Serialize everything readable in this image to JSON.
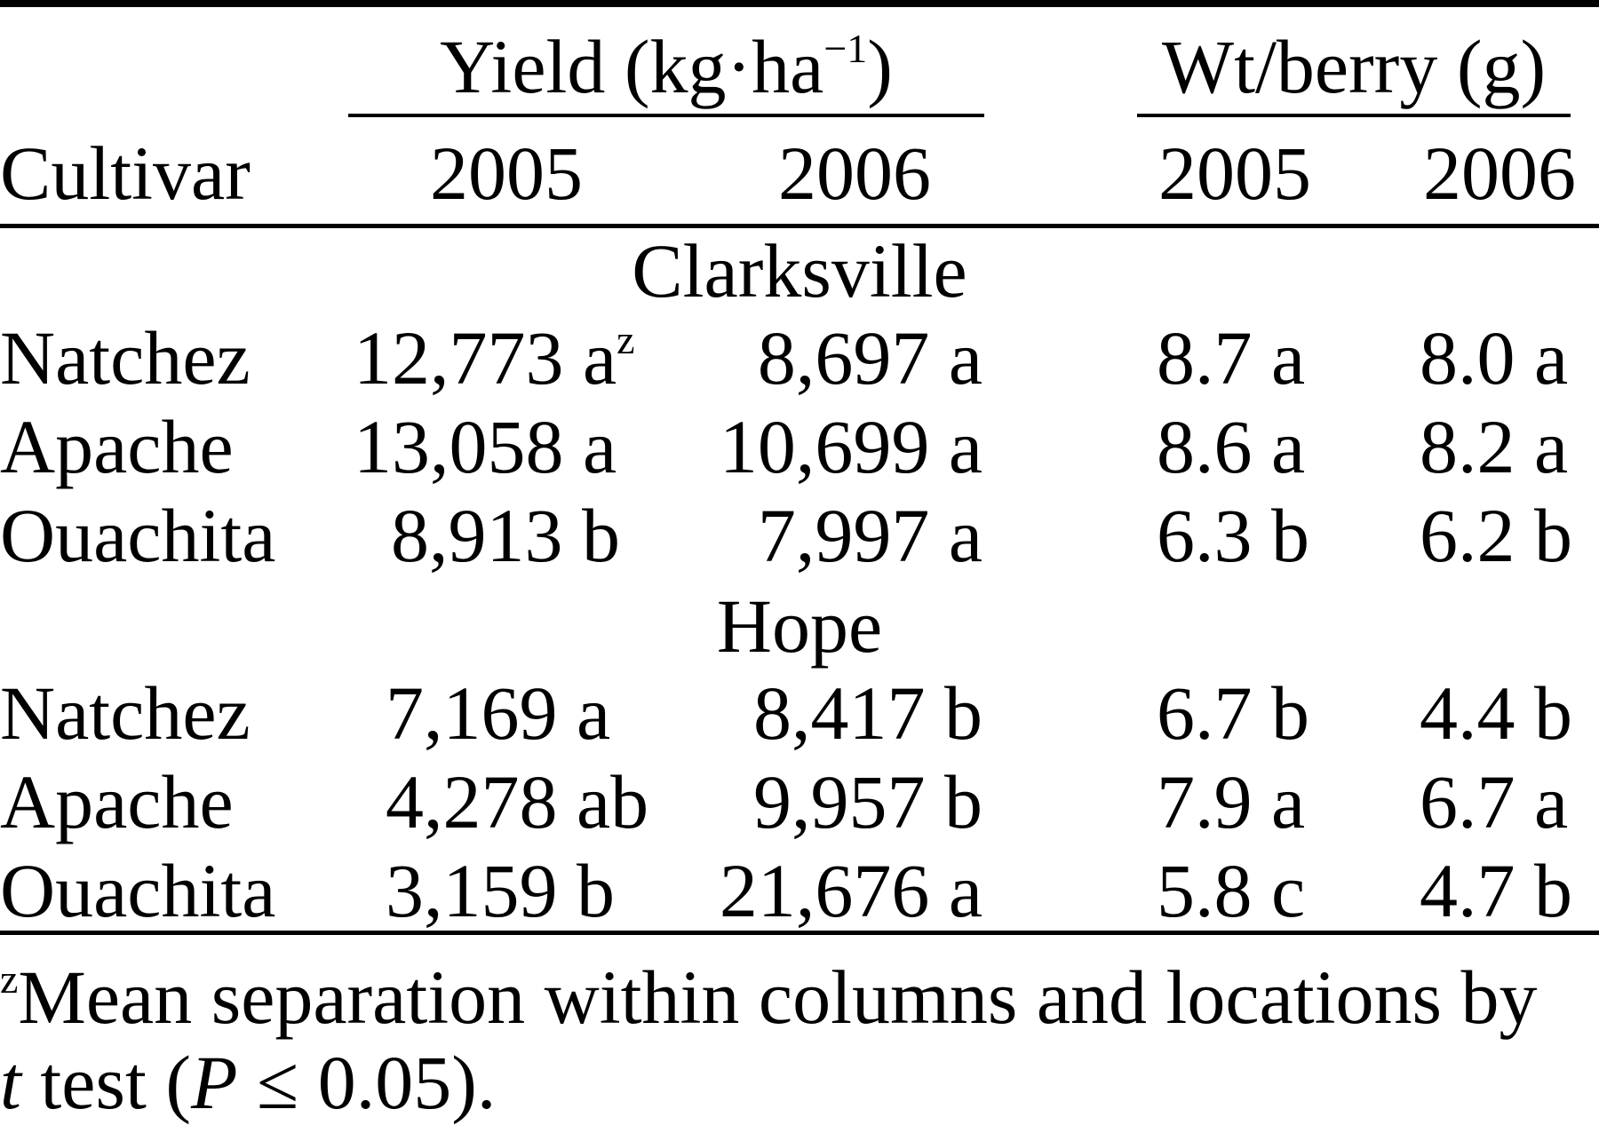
{
  "table": {
    "header": {
      "yield_group": {
        "label_start": "Yield (kg·ha",
        "label_sup": "−1",
        "label_end": ")"
      },
      "wt_group": "Wt/berry (g)",
      "cultivar": "Cultivar",
      "years": [
        "2005",
        "2006",
        "2005",
        "2006"
      ]
    },
    "sections": [
      {
        "location": "Clarksville",
        "rows": [
          {
            "cultivar": "Natchez",
            "yield_2005": "12,773 a",
            "yield_2005_sup": "z",
            "yield_2006": "8,697 a",
            "wt_2005": "8.7 a",
            "wt_2006": "8.0 a"
          },
          {
            "cultivar": "Apache",
            "yield_2005": "13,058 a",
            "yield_2006": "10,699 a",
            "wt_2005": "8.6 a",
            "wt_2006": "8.2 a"
          },
          {
            "cultivar": "Ouachita",
            "yield_2005": "8,913 b",
            "yield_2006": "7,997 a",
            "wt_2005": "6.3 b",
            "wt_2006": "6.2 b"
          }
        ]
      },
      {
        "location": "Hope",
        "rows": [
          {
            "cultivar": "Natchez",
            "yield_2005": "7,169 a",
            "yield_2006": "8,417 b",
            "wt_2005": "6.7 b",
            "wt_2006": "4.4 b"
          },
          {
            "cultivar": "Apache",
            "yield_2005": "4,278 ab",
            "yield_2006": "9,957 b",
            "wt_2005": "7.9 a",
            "wt_2006": "6.7 a"
          },
          {
            "cultivar": "Ouachita",
            "yield_2005": "3,159 b",
            "yield_2006": "21,676 a",
            "wt_2005": "5.8 c",
            "wt_2006": "4.7 b"
          }
        ]
      }
    ],
    "footnote": {
      "marker": "z",
      "line1": "Mean separation within columns and locations by",
      "line2_italic_t": "t",
      "line2_a": " test (",
      "line2_italic_p": "P",
      "line2_b": " ≤ 0.05)."
    }
  }
}
